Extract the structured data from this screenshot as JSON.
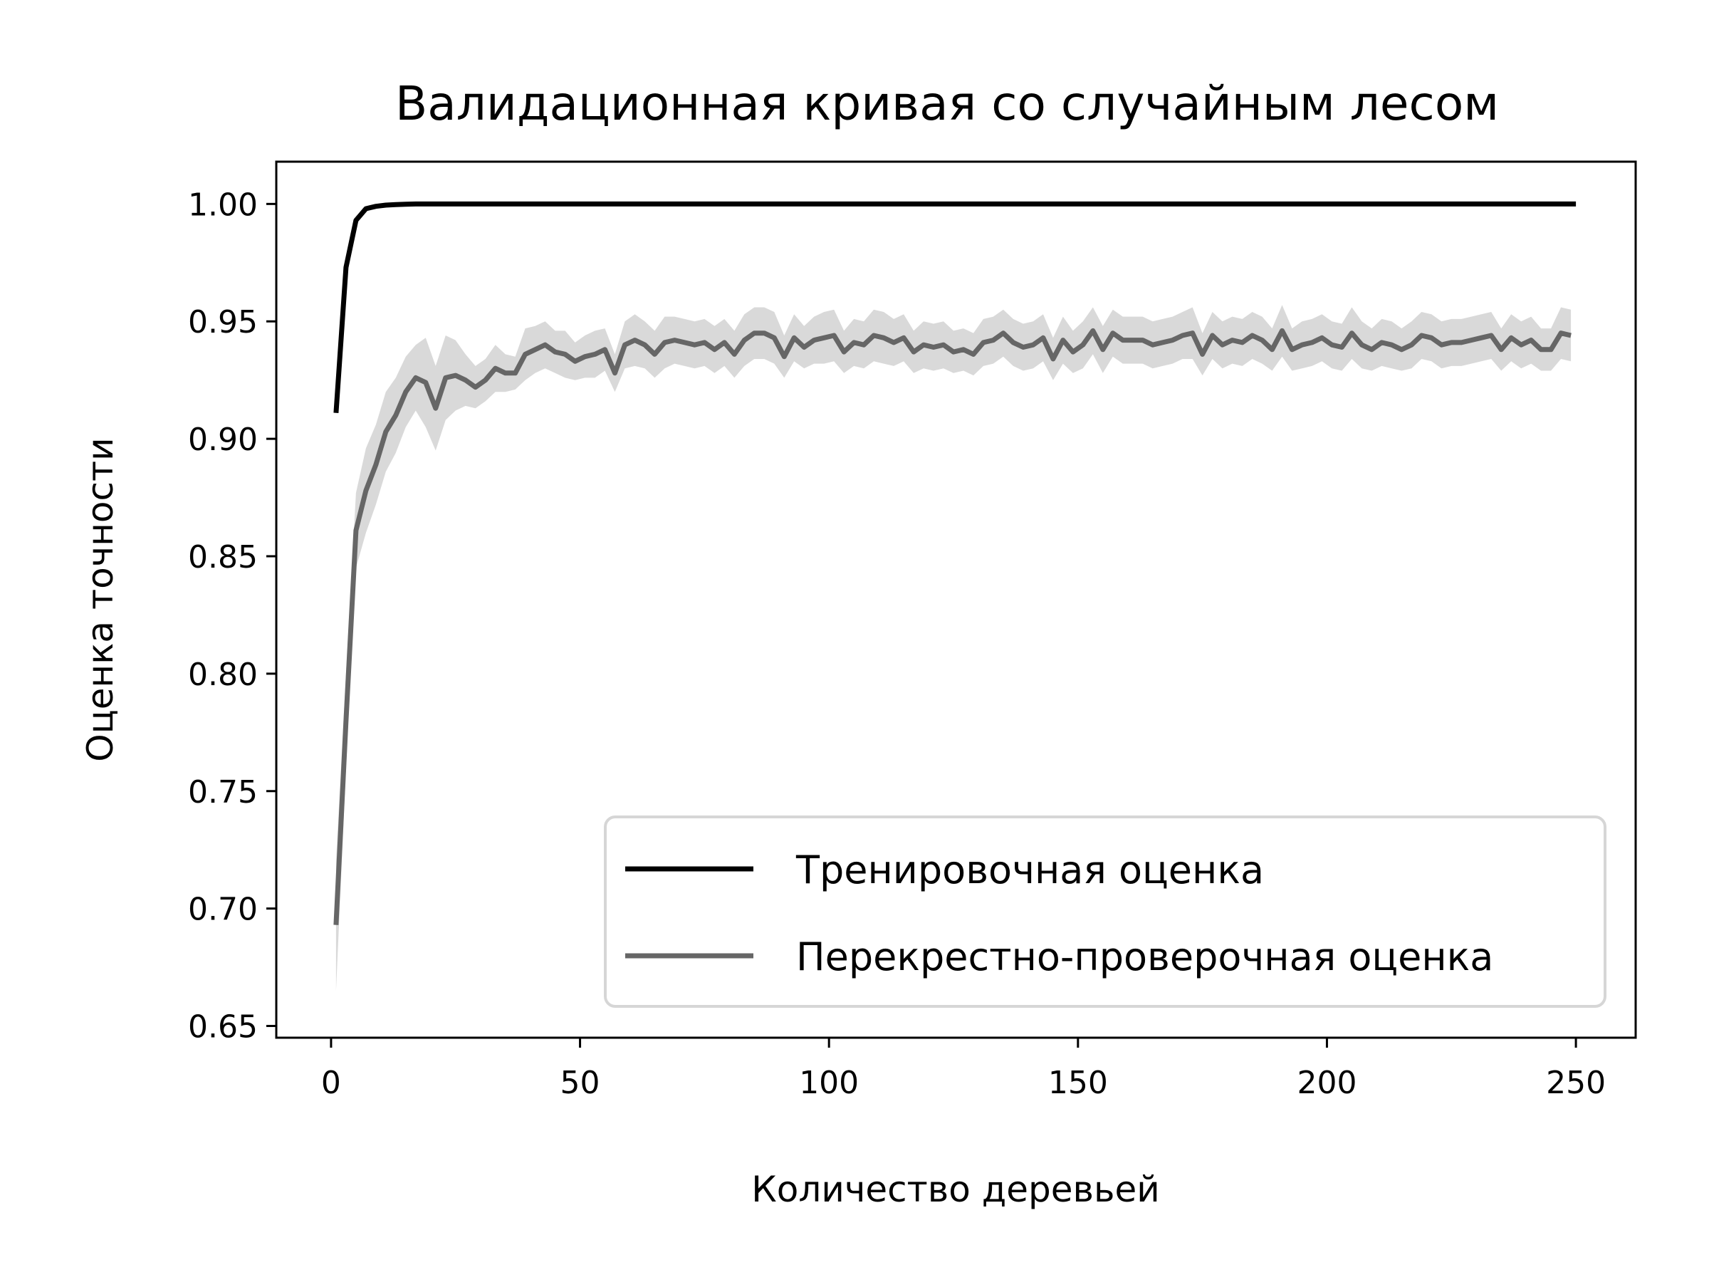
{
  "chart_data": {
    "type": "line",
    "title": "Валидационная кривая со случайным лесом",
    "xlabel": "Количество деревьей",
    "ylabel": "Оценка точности",
    "xlim": [
      -11,
      262
    ],
    "ylim": [
      0.645,
      1.018
    ],
    "xticks": [
      0,
      50,
      100,
      150,
      200,
      250
    ],
    "yticks": [
      0.65,
      0.7,
      0.75,
      0.8,
      0.85,
      0.9,
      0.95,
      1.0
    ],
    "xtick_labels": [
      "0",
      "50",
      "100",
      "150",
      "200",
      "250"
    ],
    "ytick_labels": [
      "0.65",
      "0.70",
      "0.75",
      "0.80",
      "0.85",
      "0.90",
      "0.95",
      "1.00"
    ],
    "grid": false,
    "legend_position": "lower-right",
    "colors": {
      "train": "#000000",
      "cv": "#666666",
      "band": "#d9d9d9"
    },
    "series": [
      {
        "name": "Тренировочная оценка",
        "x": [
          1,
          3,
          5,
          7,
          9,
          11,
          13,
          15,
          17,
          20,
          30,
          50,
          100,
          150,
          200,
          250
        ],
        "y": [
          0.911,
          0.973,
          0.993,
          0.998,
          0.999,
          0.9995,
          0.9997,
          0.9999,
          1.0,
          1.0,
          1.0,
          1.0,
          1.0,
          1.0,
          1.0,
          1.0
        ]
      },
      {
        "name": "Перекрестно-проверочная оценка",
        "x": [
          1,
          3,
          5,
          7,
          9,
          11,
          13,
          15,
          17,
          19,
          21,
          23,
          25,
          27,
          29,
          31,
          33,
          35,
          37,
          39,
          41,
          43,
          45,
          47,
          49,
          51,
          53,
          55,
          57,
          59,
          61,
          63,
          65,
          67,
          69,
          71,
          73,
          75,
          77,
          79,
          81,
          83,
          85,
          87,
          89,
          91,
          93,
          95,
          97,
          99,
          101,
          103,
          105,
          107,
          109,
          111,
          113,
          115,
          117,
          119,
          121,
          123,
          125,
          127,
          129,
          131,
          133,
          135,
          137,
          139,
          141,
          143,
          145,
          147,
          149,
          151,
          153,
          155,
          157,
          159,
          161,
          163,
          165,
          167,
          169,
          171,
          173,
          175,
          177,
          179,
          181,
          183,
          185,
          187,
          189,
          191,
          193,
          195,
          197,
          199,
          201,
          203,
          205,
          207,
          209,
          211,
          213,
          215,
          217,
          219,
          221,
          223,
          225,
          227,
          229,
          231,
          233,
          235,
          237,
          239,
          241,
          243,
          245,
          247,
          249
        ],
        "y": [
          0.693,
          0.78,
          0.861,
          0.878,
          0.889,
          0.903,
          0.91,
          0.92,
          0.926,
          0.924,
          0.913,
          0.926,
          0.927,
          0.925,
          0.922,
          0.925,
          0.93,
          0.928,
          0.928,
          0.936,
          0.938,
          0.94,
          0.937,
          0.936,
          0.933,
          0.935,
          0.936,
          0.938,
          0.928,
          0.94,
          0.942,
          0.94,
          0.936,
          0.941,
          0.942,
          0.941,
          0.94,
          0.941,
          0.938,
          0.941,
          0.936,
          0.942,
          0.945,
          0.945,
          0.943,
          0.935,
          0.943,
          0.939,
          0.942,
          0.943,
          0.944,
          0.937,
          0.941,
          0.94,
          0.944,
          0.943,
          0.941,
          0.943,
          0.937,
          0.94,
          0.939,
          0.94,
          0.937,
          0.938,
          0.936,
          0.941,
          0.942,
          0.945,
          0.941,
          0.939,
          0.94,
          0.943,
          0.934,
          0.942,
          0.937,
          0.94,
          0.946,
          0.938,
          0.945,
          0.942,
          0.942,
          0.942,
          0.94,
          0.941,
          0.942,
          0.944,
          0.945,
          0.936,
          0.944,
          0.94,
          0.942,
          0.941,
          0.944,
          0.942,
          0.938,
          0.946,
          0.938,
          0.94,
          0.941,
          0.943,
          0.94,
          0.939,
          0.945,
          0.94,
          0.938,
          0.941,
          0.94,
          0.938,
          0.94,
          0.944,
          0.943,
          0.94,
          0.941,
          0.941,
          0.942,
          0.943,
          0.944,
          0.938,
          0.943,
          0.94,
          0.942,
          0.938,
          0.938,
          0.945,
          0.944
        ],
        "y_low": [
          0.665,
          0.76,
          0.845,
          0.86,
          0.872,
          0.886,
          0.894,
          0.905,
          0.912,
          0.905,
          0.895,
          0.908,
          0.912,
          0.914,
          0.913,
          0.916,
          0.92,
          0.92,
          0.921,
          0.925,
          0.928,
          0.93,
          0.928,
          0.926,
          0.925,
          0.926,
          0.926,
          0.929,
          0.92,
          0.93,
          0.931,
          0.93,
          0.926,
          0.93,
          0.932,
          0.931,
          0.93,
          0.931,
          0.928,
          0.931,
          0.926,
          0.931,
          0.934,
          0.934,
          0.932,
          0.926,
          0.933,
          0.93,
          0.932,
          0.932,
          0.933,
          0.928,
          0.931,
          0.93,
          0.933,
          0.932,
          0.931,
          0.933,
          0.928,
          0.93,
          0.929,
          0.93,
          0.928,
          0.929,
          0.927,
          0.931,
          0.932,
          0.935,
          0.931,
          0.929,
          0.93,
          0.933,
          0.925,
          0.932,
          0.928,
          0.93,
          0.936,
          0.928,
          0.935,
          0.932,
          0.932,
          0.932,
          0.93,
          0.931,
          0.932,
          0.934,
          0.934,
          0.927,
          0.934,
          0.93,
          0.932,
          0.931,
          0.934,
          0.932,
          0.929,
          0.935,
          0.929,
          0.93,
          0.931,
          0.933,
          0.93,
          0.929,
          0.934,
          0.93,
          0.929,
          0.931,
          0.93,
          0.929,
          0.93,
          0.934,
          0.933,
          0.93,
          0.931,
          0.931,
          0.932,
          0.933,
          0.934,
          0.929,
          0.933,
          0.93,
          0.932,
          0.929,
          0.929,
          0.934,
          0.933
        ],
        "y_high": [
          0.72,
          0.8,
          0.877,
          0.896,
          0.906,
          0.92,
          0.926,
          0.935,
          0.94,
          0.943,
          0.931,
          0.944,
          0.942,
          0.936,
          0.931,
          0.934,
          0.94,
          0.936,
          0.935,
          0.947,
          0.948,
          0.95,
          0.946,
          0.946,
          0.941,
          0.944,
          0.946,
          0.947,
          0.936,
          0.95,
          0.953,
          0.95,
          0.946,
          0.952,
          0.952,
          0.951,
          0.95,
          0.951,
          0.948,
          0.951,
          0.946,
          0.953,
          0.956,
          0.956,
          0.954,
          0.944,
          0.953,
          0.948,
          0.952,
          0.954,
          0.955,
          0.946,
          0.951,
          0.95,
          0.955,
          0.954,
          0.951,
          0.953,
          0.946,
          0.95,
          0.949,
          0.95,
          0.946,
          0.947,
          0.945,
          0.951,
          0.952,
          0.955,
          0.951,
          0.949,
          0.95,
          0.953,
          0.943,
          0.952,
          0.946,
          0.95,
          0.956,
          0.948,
          0.955,
          0.952,
          0.952,
          0.952,
          0.95,
          0.951,
          0.952,
          0.954,
          0.956,
          0.945,
          0.954,
          0.95,
          0.952,
          0.951,
          0.954,
          0.952,
          0.947,
          0.957,
          0.947,
          0.95,
          0.951,
          0.953,
          0.95,
          0.949,
          0.956,
          0.95,
          0.947,
          0.951,
          0.95,
          0.947,
          0.95,
          0.954,
          0.953,
          0.95,
          0.951,
          0.951,
          0.952,
          0.953,
          0.954,
          0.947,
          0.953,
          0.95,
          0.952,
          0.947,
          0.947,
          0.956,
          0.955
        ]
      }
    ]
  }
}
